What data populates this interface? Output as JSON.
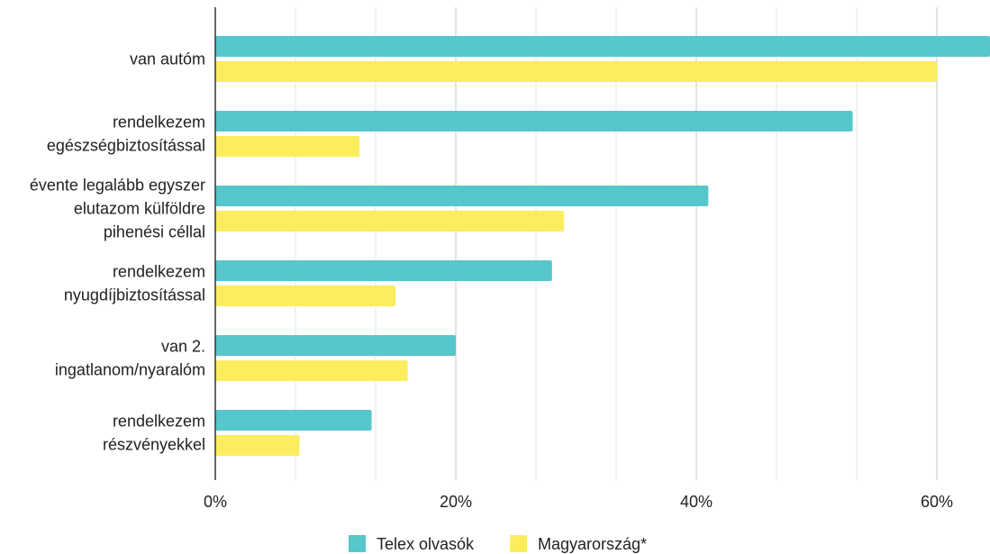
{
  "chart_data": {
    "type": "bar",
    "orientation": "horizontal",
    "categories": [
      [
        "van autóm"
      ],
      [
        "rendelkezem",
        "egészségbiztosítással"
      ],
      [
        "évente legalább egyszer",
        "elutazom külföldre",
        "pihenési céllal"
      ],
      [
        "rendelkezem",
        "nyugdíjbiztosítással"
      ],
      [
        "van 2.",
        "ingatlanom/nyaralóm"
      ],
      [
        "rendelkezem",
        "részvényekkel"
      ]
    ],
    "series": [
      {
        "name": "Telex olvasók",
        "color": "#56c7cc",
        "values": [
          66,
          53,
          41,
          28,
          20,
          13
        ]
      },
      {
        "name": "Magyarország*",
        "color": "#fbed5e",
        "values": [
          60,
          12,
          29,
          15,
          16,
          7
        ]
      }
    ],
    "xlim": [
      0,
      65
    ],
    "xticks": [
      0,
      20,
      40,
      60
    ],
    "xtick_labels": [
      "0%",
      "20%",
      "40%",
      "60%"
    ],
    "minor_gridlines": true,
    "grid": true,
    "legend": "bottom-center",
    "title": "",
    "xlabel": "",
    "ylabel": ""
  }
}
